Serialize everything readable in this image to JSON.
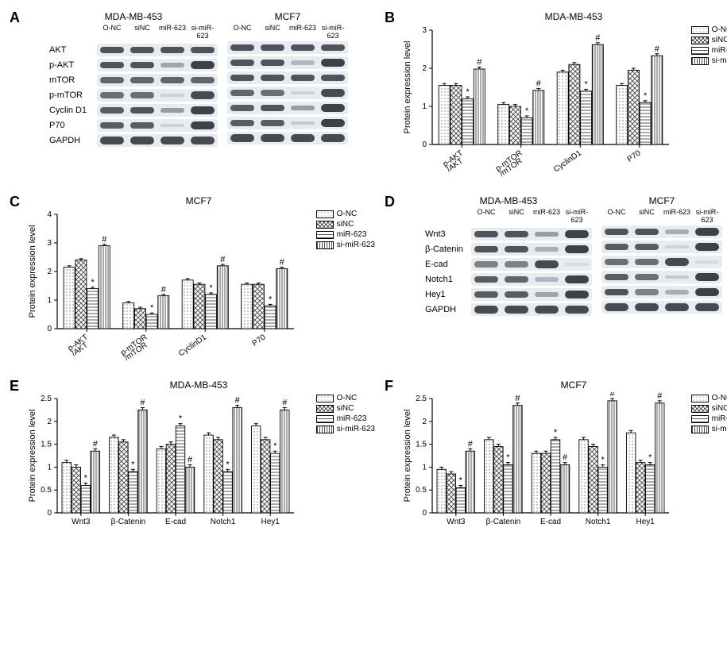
{
  "groups": [
    "O-NC",
    "siNC",
    "miR-623",
    "si-miR-623"
  ],
  "group_patterns": [
    "onc",
    "sinc",
    "mir",
    "simir"
  ],
  "legend_labels": [
    "O-NC",
    "siNC",
    "miR-623",
    "si-miR-623"
  ],
  "yaxis_label": "Protein expression level",
  "chart_colors": {
    "axis": "#000000",
    "bar_stroke": "#000000",
    "sig_color": "#000000"
  },
  "panelA": {
    "label": "A",
    "blot_sets": [
      {
        "title": "MDA-MB-453",
        "rows": [
          {
            "label": "AKT",
            "int": [
              0.85,
              0.85,
              0.85,
              0.85
            ]
          },
          {
            "label": "p-AKT",
            "int": [
              0.85,
              0.85,
              0.4,
              0.95
            ]
          },
          {
            "label": "mTOR",
            "int": [
              0.75,
              0.75,
              0.75,
              0.75
            ]
          },
          {
            "label": "p-mTOR",
            "int": [
              0.7,
              0.7,
              0.15,
              0.9
            ]
          },
          {
            "label": "Cyclin D1",
            "int": [
              0.8,
              0.85,
              0.45,
              0.95
            ]
          },
          {
            "label": "P70",
            "int": [
              0.8,
              0.8,
              0.15,
              0.95
            ]
          },
          {
            "label": "GAPDH",
            "int": [
              0.9,
              0.9,
              0.9,
              0.9
            ]
          }
        ]
      },
      {
        "title": "MCF7",
        "rows": [
          {
            "label": "",
            "int": [
              0.85,
              0.85,
              0.85,
              0.85
            ]
          },
          {
            "label": "",
            "int": [
              0.85,
              0.85,
              0.3,
              0.95
            ]
          },
          {
            "label": "",
            "int": [
              0.85,
              0.85,
              0.85,
              0.85
            ]
          },
          {
            "label": "",
            "int": [
              0.75,
              0.7,
              0.15,
              0.9
            ]
          },
          {
            "label": "",
            "int": [
              0.8,
              0.85,
              0.45,
              0.95
            ]
          },
          {
            "label": "",
            "int": [
              0.8,
              0.8,
              0.2,
              0.95
            ]
          },
          {
            "label": "",
            "int": [
              0.9,
              0.9,
              0.9,
              0.9
            ]
          }
        ]
      }
    ]
  },
  "panelD": {
    "label": "D",
    "blot_sets": [
      {
        "title": "MDA-MB-453",
        "rows": [
          {
            "label": "Wnt3",
            "int": [
              0.85,
              0.85,
              0.45,
              0.95
            ]
          },
          {
            "label": "β-Catenin",
            "int": [
              0.85,
              0.85,
              0.35,
              0.95
            ]
          },
          {
            "label": "E-cad",
            "int": [
              0.6,
              0.6,
              0.9,
              0.1
            ]
          },
          {
            "label": "Notch1",
            "int": [
              0.8,
              0.75,
              0.3,
              0.95
            ]
          },
          {
            "label": "Hey1",
            "int": [
              0.8,
              0.8,
              0.4,
              0.95
            ]
          },
          {
            "label": "GAPDH",
            "int": [
              0.9,
              0.9,
              0.9,
              0.9
            ]
          }
        ]
      },
      {
        "title": "MCF7",
        "rows": [
          {
            "label": "",
            "int": [
              0.85,
              0.85,
              0.35,
              0.95
            ]
          },
          {
            "label": "",
            "int": [
              0.8,
              0.8,
              0.15,
              0.95
            ]
          },
          {
            "label": "",
            "int": [
              0.7,
              0.7,
              0.9,
              0.1
            ]
          },
          {
            "label": "",
            "int": [
              0.8,
              0.7,
              0.2,
              0.95
            ]
          },
          {
            "label": "",
            "int": [
              0.85,
              0.6,
              0.35,
              0.95
            ]
          },
          {
            "label": "",
            "int": [
              0.9,
              0.9,
              0.9,
              0.9
            ]
          }
        ]
      }
    ]
  },
  "panelB": {
    "label": "B",
    "title": "MDA-MB-453",
    "ylim": [
      0,
      3
    ],
    "ytick_step": 1,
    "categories": [
      "p-AKT\n/AKT",
      "p-mTOR\n/mTOR",
      "CyclinD1",
      "P70"
    ],
    "series": [
      {
        "name": "O-NC",
        "vals": [
          1.55,
          1.05,
          1.9,
          1.55
        ],
        "err": [
          0.05,
          0.05,
          0.05,
          0.05
        ]
      },
      {
        "name": "siNC",
        "vals": [
          1.55,
          1.0,
          2.1,
          1.95
        ],
        "err": [
          0.05,
          0.05,
          0.05,
          0.05
        ]
      },
      {
        "name": "miR-623",
        "vals": [
          1.2,
          0.7,
          1.4,
          1.1
        ],
        "err": [
          0.05,
          0.05,
          0.05,
          0.05
        ],
        "sig": "*"
      },
      {
        "name": "si-miR-623",
        "vals": [
          1.98,
          1.42,
          2.62,
          2.33
        ],
        "err": [
          0.05,
          0.05,
          0.05,
          0.05
        ],
        "sig": "#"
      }
    ]
  },
  "panelC": {
    "label": "C",
    "title": "MCF7",
    "ylim": [
      0,
      4
    ],
    "ytick_step": 1,
    "categories": [
      "p-AKT\n/AKT",
      "p-mTOR\n/mTOR",
      "CyclinD1",
      "P70"
    ],
    "series": [
      {
        "name": "O-NC",
        "vals": [
          2.15,
          0.9,
          1.7,
          1.55
        ],
        "err": [
          0.05,
          0.05,
          0.05,
          0.05
        ]
      },
      {
        "name": "siNC",
        "vals": [
          2.4,
          0.7,
          1.55,
          1.55
        ],
        "err": [
          0.05,
          0.05,
          0.05,
          0.05
        ]
      },
      {
        "name": "miR-623",
        "vals": [
          1.4,
          0.5,
          1.2,
          0.8
        ],
        "err": [
          0.05,
          0.05,
          0.05,
          0.05
        ],
        "sig": "*"
      },
      {
        "name": "si-miR-623",
        "vals": [
          2.9,
          1.15,
          2.2,
          2.1
        ],
        "err": [
          0.05,
          0.05,
          0.05,
          0.05
        ],
        "sig": "#"
      }
    ]
  },
  "panelE": {
    "label": "E",
    "title": "MDA-MB-453",
    "ylim": [
      0,
      2.5
    ],
    "ytick_step": 0.5,
    "categories": [
      "Wnt3",
      "β-Catenin",
      "E-cad",
      "Notch1",
      "Hey1"
    ],
    "series": [
      {
        "name": "O-NC",
        "vals": [
          1.1,
          1.65,
          1.4,
          1.7,
          1.9
        ],
        "err": [
          0.05,
          0.05,
          0.05,
          0.05,
          0.05
        ]
      },
      {
        "name": "siNC",
        "vals": [
          1.0,
          1.55,
          1.5,
          1.6,
          1.6
        ],
        "err": [
          0.05,
          0.05,
          0.05,
          0.05,
          0.05
        ]
      },
      {
        "name": "miR-623",
        "vals": [
          0.6,
          0.9,
          1.9,
          0.9,
          1.3
        ],
        "err": [
          0.05,
          0.05,
          0.05,
          0.05,
          0.05
        ],
        "sig_per": [
          "*",
          "*",
          "*",
          "*",
          "*"
        ]
      },
      {
        "name": "si-miR-623",
        "vals": [
          1.35,
          2.25,
          1.0,
          2.3,
          2.25
        ],
        "err": [
          0.05,
          0.05,
          0.05,
          0.05,
          0.05
        ],
        "sig_per": [
          "#",
          "#",
          "#",
          "#",
          "#"
        ]
      }
    ]
  },
  "panelF": {
    "label": "F",
    "title": "MCF7",
    "ylim": [
      0,
      2.5
    ],
    "ytick_step": 0.5,
    "categories": [
      "Wnt3",
      "β-Catenin",
      "E-cad",
      "Notch1",
      "Hey1"
    ],
    "series": [
      {
        "name": "O-NC",
        "vals": [
          0.95,
          1.6,
          1.3,
          1.6,
          1.75
        ],
        "err": [
          0.05,
          0.05,
          0.05,
          0.05,
          0.05
        ]
      },
      {
        "name": "siNC",
        "vals": [
          0.85,
          1.45,
          1.3,
          1.45,
          1.1
        ],
        "err": [
          0.05,
          0.05,
          0.05,
          0.05,
          0.05
        ]
      },
      {
        "name": "miR-623",
        "vals": [
          0.55,
          1.05,
          1.6,
          1.0,
          1.05
        ],
        "err": [
          0.05,
          0.05,
          0.05,
          0.05,
          0.05
        ],
        "sig_per": [
          "*",
          "*",
          "*",
          "*",
          "*"
        ]
      },
      {
        "name": "si-miR-623",
        "vals": [
          1.35,
          2.35,
          1.05,
          2.45,
          2.4
        ],
        "err": [
          0.05,
          0.05,
          0.05,
          0.05,
          0.05
        ],
        "sig_per": [
          "#",
          "#",
          "#",
          "#",
          "#"
        ]
      }
    ]
  },
  "blot_style": {
    "band_width": 36,
    "band_dark": "#2a3640",
    "band_light": "#c5ced6",
    "strip_bg": "#e8ecf0"
  }
}
